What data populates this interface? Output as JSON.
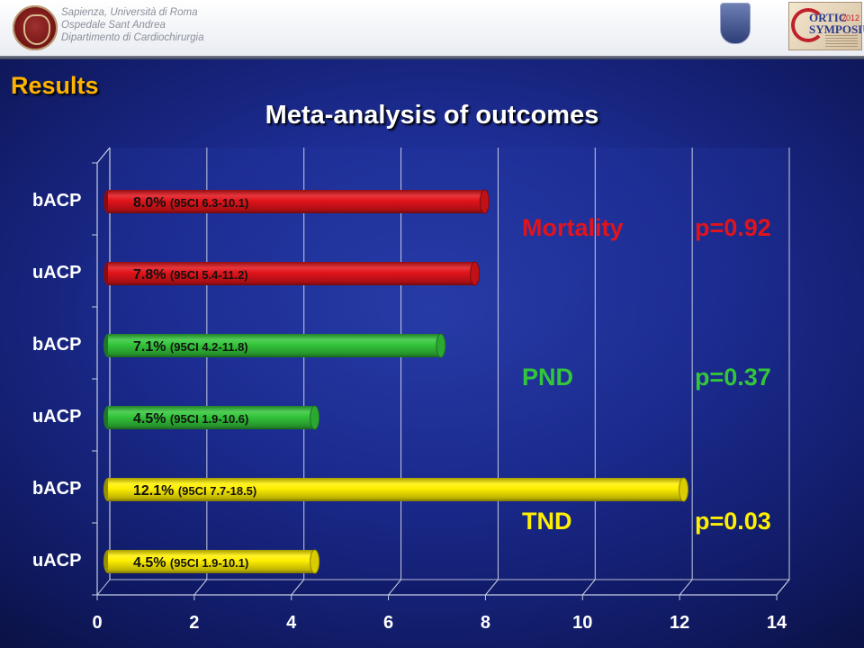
{
  "header": {
    "institution_lines": [
      "Sapienza, Università di Roma",
      "Ospedale Sant Andrea",
      "Dipartimento di Cardiochirurgia"
    ],
    "logo_title": "ORTIC\nSYMPOSIUM",
    "logo_year": "2012"
  },
  "section_title": "Results",
  "colors": {
    "red": "#e2141b",
    "green": "#33c63a",
    "yellow": "#fff000",
    "accent": "#ffb300"
  },
  "chart_data": {
    "type": "bar",
    "orientation": "horizontal",
    "title": "Meta-analysis of outcomes",
    "xlim": [
      0,
      14
    ],
    "x_ticks": [
      0,
      2,
      4,
      6,
      8,
      10,
      12,
      14
    ],
    "grid": true,
    "categories": [
      "bACP",
      "uACP",
      "bACP",
      "uACP",
      "bACP",
      "uACP"
    ],
    "values": [
      8.0,
      7.8,
      7.1,
      4.5,
      12.1,
      4.5
    ],
    "value_labels": [
      "8.0%",
      "7.8%",
      "7.1%",
      "4.5%",
      "12.1%",
      "4.5%"
    ],
    "ci_labels": [
      "(95CI 6.3-10.1)",
      "(95CI 5.4-11.2)",
      "(95CI 4.2-11.8)",
      "(95CI 1.9-10.6)",
      "(95CI 7.7-18.5)",
      "(95CI 1.9-10.1)"
    ],
    "bar_colors": [
      "#e2141b",
      "#e2141b",
      "#33c63a",
      "#33c63a",
      "#fff000",
      "#fff000"
    ],
    "groups": [
      {
        "name": "Mortality",
        "p": "p=0.92",
        "color": "#e2141b"
      },
      {
        "name": "PND",
        "p": "p=0.37",
        "color": "#33c63a"
      },
      {
        "name": "TND",
        "p": "p=0.03",
        "color": "#fff000"
      }
    ]
  }
}
